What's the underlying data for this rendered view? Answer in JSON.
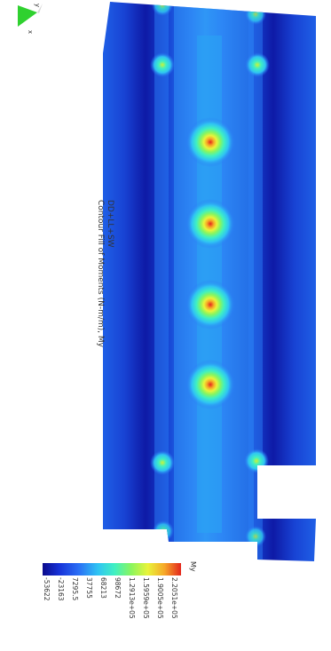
{
  "triad": {
    "x_label": "x",
    "y_label": "y"
  },
  "title": {
    "line1": "DD+LL+SW",
    "line2": "Contour Fill of Moments (N-m/m), My"
  },
  "legend": {
    "title": "My",
    "ticks": [
      "-53622",
      "-23163",
      "7295.5",
      "37755",
      "68213",
      "98672",
      "1.2913e+05",
      "1.5959e+05",
      "1.9005e+05",
      "2.2051e+05"
    ]
  },
  "colors": {
    "min": "#0b0b8c",
    "low": "#1732d8",
    "mid": "#2fc4f3",
    "high": "#8af55e",
    "peak": "#e3261d"
  }
}
